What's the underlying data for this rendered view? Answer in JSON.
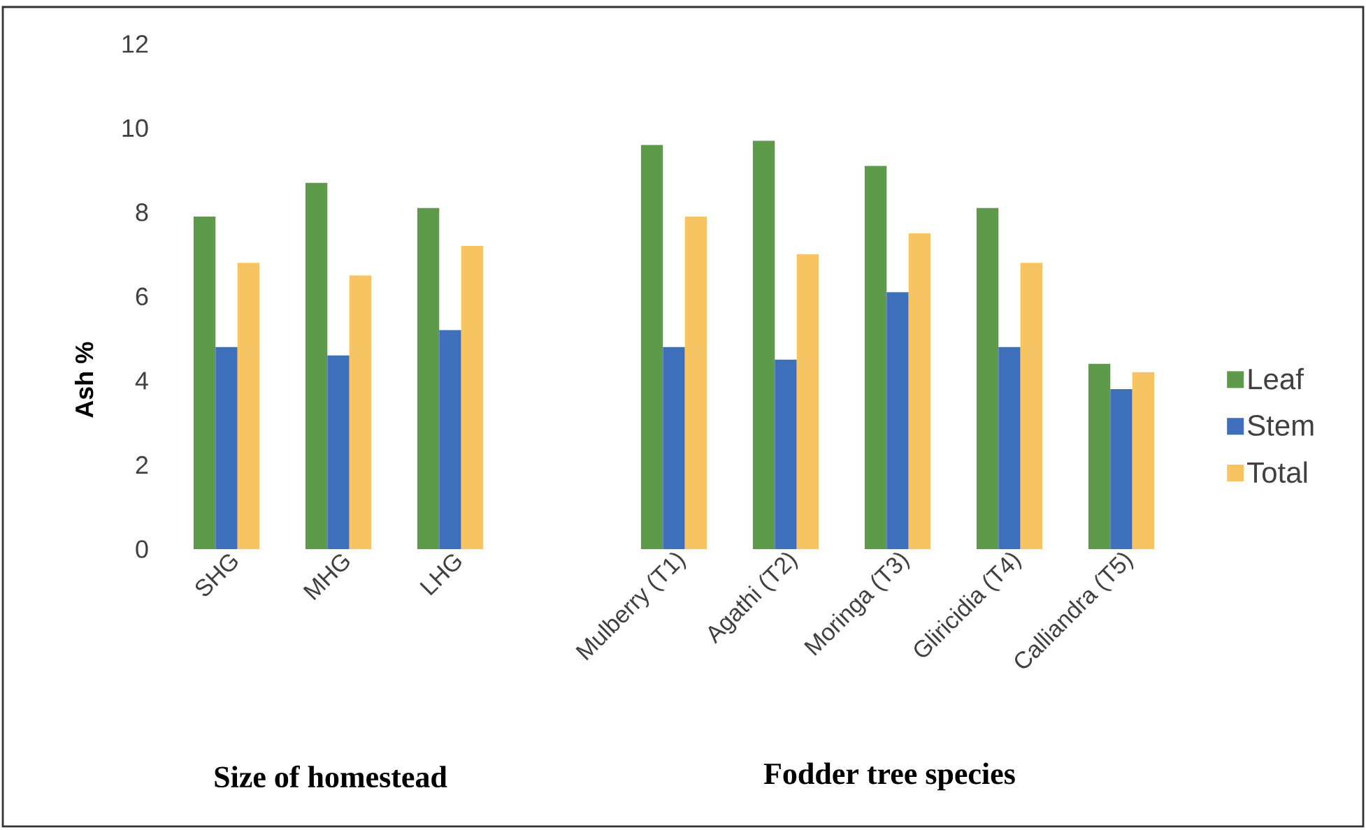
{
  "chart_data": {
    "type": "bar",
    "ylabel": "Ash %",
    "categories": [
      "SHG",
      "MHG",
      "LHG",
      null,
      "Mulberry (T1)",
      "Agathi (T2)",
      "Moringa (T3)",
      "Gliricidia (T4)",
      "Calliandra (T5)"
    ],
    "series": [
      {
        "name": "Leaf",
        "color": "#5f9a4c",
        "values": [
          7.9,
          8.7,
          8.1,
          null,
          9.6,
          9.7,
          9.1,
          8.1,
          4.4
        ]
      },
      {
        "name": "Stem",
        "color": "#3d6fbb",
        "values": [
          4.8,
          4.6,
          5.2,
          null,
          4.8,
          4.5,
          6.1,
          4.8,
          3.8
        ]
      },
      {
        "name": "Total",
        "color": "#f6c463",
        "values": [
          6.8,
          6.5,
          7.2,
          null,
          7.9,
          7.0,
          7.5,
          6.8,
          4.2
        ]
      }
    ],
    "ylim": [
      0,
      12
    ],
    "yticks": [
      0,
      2,
      4,
      6,
      8,
      10,
      12
    ],
    "legend": "right",
    "annotations": [
      "Size of homestead",
      "Fodder tree species"
    ]
  }
}
